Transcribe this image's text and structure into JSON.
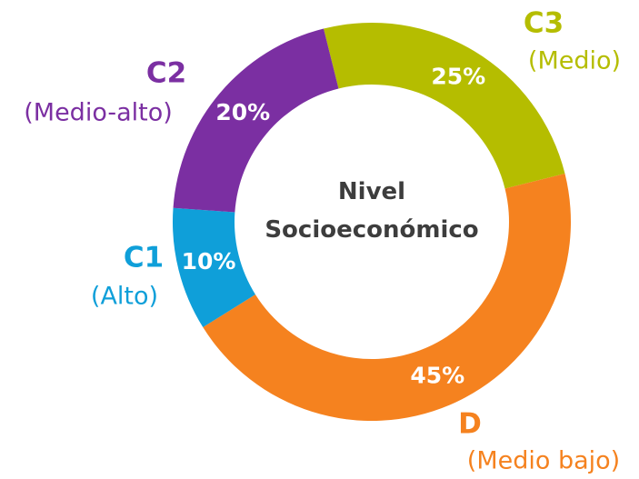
{
  "chart_data": {
    "type": "pie",
    "title": "Nivel Socioeconómico",
    "categories": [
      "C3",
      "D",
      "C1",
      "C2"
    ],
    "descriptions": [
      "(Medio)",
      "(Medio bajo)",
      "(Alto)",
      "(Medio-alto)"
    ],
    "values": [
      25,
      45,
      10,
      20
    ],
    "value_labels": [
      "25%",
      "45%",
      "10%",
      "20%"
    ],
    "colors": [
      "#b5bd00",
      "#f5821f",
      "#0f9fd9",
      "#7b2fa2"
    ]
  }
}
